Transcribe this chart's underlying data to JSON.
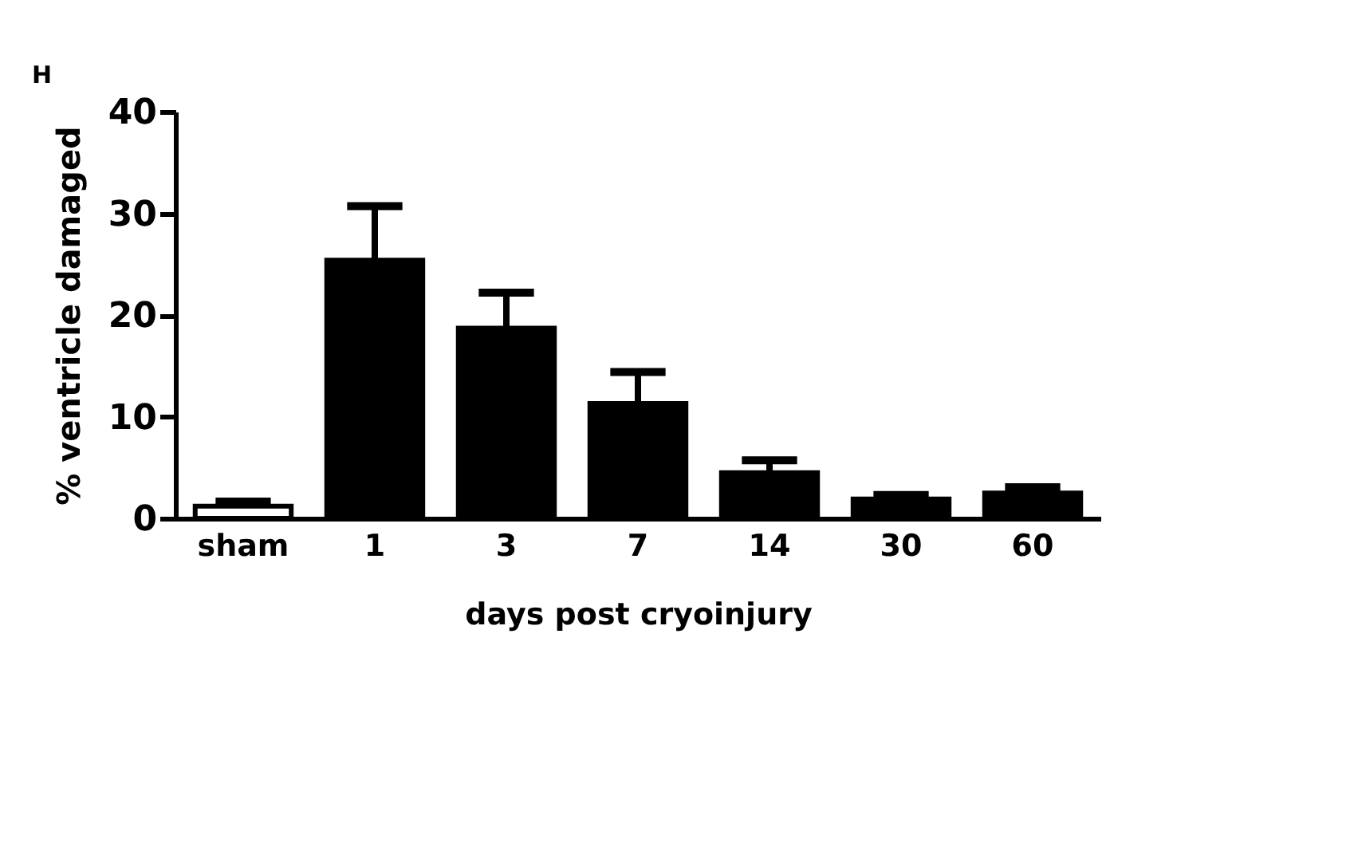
{
  "chart_data": {
    "type": "bar",
    "xlabel": "days post cryoinjury",
    "ylabel": "% ventricle damaged",
    "annotations": [
      "H"
    ],
    "categories": [
      "sham",
      "1",
      "3",
      "7",
      "14",
      "30",
      "60"
    ],
    "values": [
      1.2,
      25.4,
      18.7,
      11.3,
      4.5,
      1.9,
      2.5
    ],
    "colors": [
      "#ffffff",
      "#000000",
      "#000000",
      "#000000",
      "#000000",
      "#000000",
      "#000000"
    ],
    "errors": [
      [
        1.2,
        1.65
      ],
      [
        25.4,
        30.7
      ],
      [
        18.7,
        22.2
      ],
      [
        11.3,
        14.4
      ],
      [
        4.5,
        5.7
      ],
      [
        1.9,
        2.3
      ],
      [
        2.5,
        3.05
      ]
    ],
    "ylim": [
      0,
      40
    ],
    "yticks": [
      0,
      10,
      20,
      30,
      40
    ],
    "grid": false
  }
}
